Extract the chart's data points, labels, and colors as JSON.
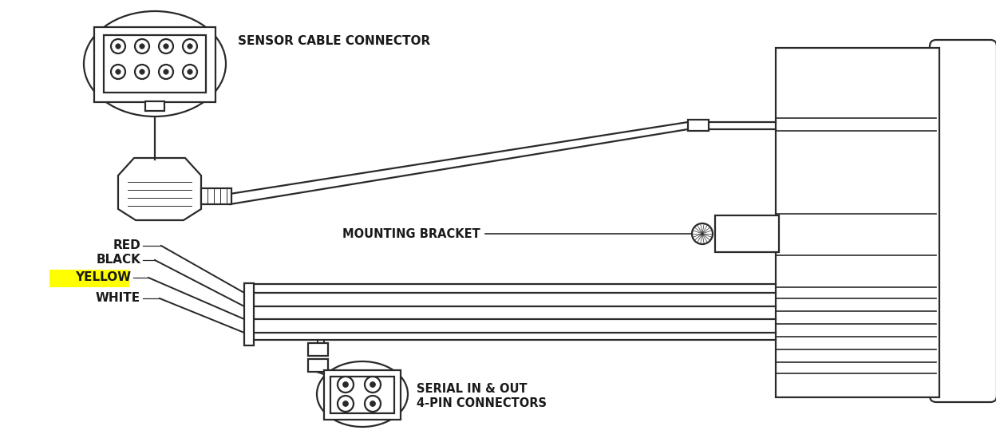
{
  "bg": "#ffffff",
  "lc": "#2a2a2a",
  "tc": "#1a1a1a",
  "yellow": "#ffff00",
  "lbl_sensor": "SENSOR CABLE CONNECTOR",
  "lbl_mount": "MOUNTING BRACKET",
  "lbl_serial1": "SERIAL IN & OUT",
  "lbl_serial2": "4-PIN CONNECTORS",
  "lbl_red": "RED",
  "lbl_black": "BLACK",
  "lbl_yellow": "YELLOW",
  "lbl_white": "WHITE",
  "fw": 12.48,
  "fh": 5.49,
  "dpi": 100
}
